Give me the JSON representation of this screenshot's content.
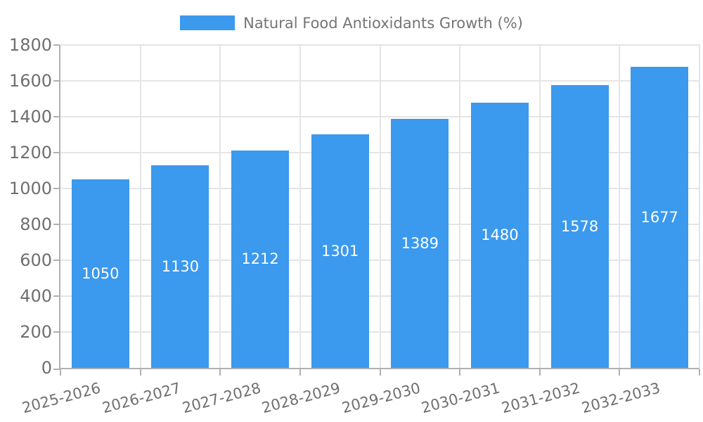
{
  "legend": {
    "label": "Natural Food Antioxidants Growth (%)"
  },
  "chart_data": {
    "type": "bar",
    "title": "Natural Food Antioxidants Growth (%)",
    "categories": [
      "2025-2026",
      "2026-2027",
      "2027-2028",
      "2028-2029",
      "2029-2030",
      "2030-2031",
      "2031-2032",
      "2032-2033"
    ],
    "values": [
      1050,
      1130,
      1212,
      1301,
      1389,
      1480,
      1578,
      1677
    ],
    "bar_labels": [
      "1050",
      "1130",
      "1212",
      "1301",
      "1389",
      "1480",
      "1578",
      "1677"
    ],
    "xlabel": "",
    "ylabel": "",
    "ylim": [
      0,
      1800
    ],
    "yticks": [
      0,
      200,
      400,
      600,
      800,
      1000,
      1200,
      1400,
      1600,
      1800
    ],
    "grid": true,
    "legend_position": "top-center",
    "x_tick_rotation_deg": 15,
    "colors": {
      "bar": "#3b99ee",
      "bar_label": "#ffffff",
      "grid": "#e5e5e5",
      "axis": "#b1b1b1",
      "tick_label": "#6f6f6f",
      "legend_text": "#757575",
      "background": "#ffffff"
    }
  }
}
